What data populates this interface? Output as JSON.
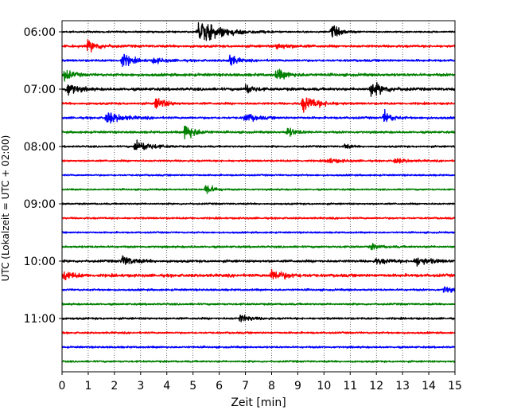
{
  "chart_data": {
    "type": "line",
    "subtype": "helicorder",
    "xlabel": "Zeit  [min]",
    "ylabel": "UTC (Lokalzeit = UTC + 02:00)",
    "xlim": [
      0,
      15
    ],
    "x_ticks": [
      0,
      1,
      2,
      3,
      4,
      5,
      6,
      7,
      8,
      9,
      10,
      11,
      12,
      13,
      14,
      15
    ],
    "x_tick_labels": [
      "0",
      "1",
      "2",
      "3",
      "4",
      "5",
      "6",
      "7",
      "8",
      "9",
      "10",
      "11",
      "12",
      "13",
      "14",
      "15"
    ],
    "grid": "vertical dotted lines at each minute",
    "y_tick_labels": [
      "06:00",
      "07:00",
      "08:00",
      "09:00",
      "10:00",
      "11:00"
    ],
    "y_tick_times_min": [
      0,
      60,
      120,
      180,
      240,
      300
    ],
    "row_interval_min": 15,
    "color_cycle": [
      "#000000",
      "#ff0000",
      "#0000ff",
      "#008000"
    ],
    "rows": [
      {
        "start": "06:00",
        "color": "#000000",
        "noise": 0.9,
        "events": [
          {
            "t": 5.2,
            "amp": 14,
            "dur": 1.3
          },
          {
            "t": 10.3,
            "amp": 7,
            "dur": 0.5
          }
        ]
      },
      {
        "start": "06:15",
        "color": "#ff0000",
        "noise": 1.3,
        "events": [
          {
            "t": 1.0,
            "amp": 6,
            "dur": 0.6
          },
          {
            "t": 8.2,
            "amp": 3,
            "dur": 0.8
          }
        ]
      },
      {
        "start": "06:30",
        "color": "#0000ff",
        "noise": 1.2,
        "events": [
          {
            "t": 2.3,
            "amp": 8,
            "dur": 0.5
          },
          {
            "t": 6.4,
            "amp": 7,
            "dur": 0.4
          },
          {
            "t": 3.5,
            "amp": 3,
            "dur": 0.6
          }
        ]
      },
      {
        "start": "06:45",
        "color": "#008000",
        "noise": 1.5,
        "events": [
          {
            "t": 0.1,
            "amp": 6,
            "dur": 0.4
          },
          {
            "t": 8.2,
            "amp": 6,
            "dur": 0.6
          }
        ]
      },
      {
        "start": "07:00",
        "color": "#000000",
        "noise": 1.5,
        "events": [
          {
            "t": 0.2,
            "amp": 8,
            "dur": 0.5
          },
          {
            "t": 7.0,
            "amp": 6,
            "dur": 0.4
          },
          {
            "t": 11.8,
            "amp": 8,
            "dur": 0.7
          }
        ]
      },
      {
        "start": "07:15",
        "color": "#ff0000",
        "noise": 1.2,
        "events": [
          {
            "t": 3.6,
            "amp": 7,
            "dur": 0.5
          },
          {
            "t": 9.2,
            "amp": 9,
            "dur": 0.8
          }
        ]
      },
      {
        "start": "07:30",
        "color": "#0000ff",
        "noise": 1.2,
        "events": [
          {
            "t": 1.7,
            "amp": 7,
            "dur": 0.8
          },
          {
            "t": 7.0,
            "amp": 5,
            "dur": 0.6
          },
          {
            "t": 12.3,
            "amp": 8,
            "dur": 0.4
          }
        ]
      },
      {
        "start": "07:45",
        "color": "#008000",
        "noise": 1.2,
        "events": [
          {
            "t": 4.7,
            "amp": 11,
            "dur": 0.5
          },
          {
            "t": 8.6,
            "amp": 5,
            "dur": 0.5
          }
        ]
      },
      {
        "start": "08:00",
        "color": "#000000",
        "noise": 1.0,
        "events": [
          {
            "t": 2.8,
            "amp": 7,
            "dur": 0.8
          },
          {
            "t": 10.8,
            "amp": 3,
            "dur": 0.3
          }
        ]
      },
      {
        "start": "08:15",
        "color": "#ff0000",
        "noise": 1.0,
        "events": [
          {
            "t": 10.1,
            "amp": 3,
            "dur": 0.7
          },
          {
            "t": 12.7,
            "amp": 3,
            "dur": 0.6
          }
        ]
      },
      {
        "start": "08:30",
        "color": "#0000ff",
        "noise": 0.9,
        "events": []
      },
      {
        "start": "08:45",
        "color": "#008000",
        "noise": 0.9,
        "events": [
          {
            "t": 5.5,
            "amp": 7,
            "dur": 0.4
          }
        ]
      },
      {
        "start": "09:00",
        "color": "#000000",
        "noise": 0.9,
        "events": []
      },
      {
        "start": "09:15",
        "color": "#ff0000",
        "noise": 1.0,
        "events": []
      },
      {
        "start": "09:30",
        "color": "#0000ff",
        "noise": 0.9,
        "events": []
      },
      {
        "start": "09:45",
        "color": "#008000",
        "noise": 1.1,
        "events": [
          {
            "t": 11.8,
            "amp": 3,
            "dur": 0.5
          }
        ]
      },
      {
        "start": "10:00",
        "color": "#000000",
        "noise": 1.3,
        "events": [
          {
            "t": 2.3,
            "amp": 6,
            "dur": 0.6
          },
          {
            "t": 13.5,
            "amp": 5,
            "dur": 0.8
          },
          {
            "t": 12.0,
            "amp": 3,
            "dur": 0.8
          }
        ]
      },
      {
        "start": "10:15",
        "color": "#ff0000",
        "noise": 1.6,
        "events": [
          {
            "t": 0.1,
            "amp": 5,
            "dur": 0.5
          },
          {
            "t": 8.0,
            "amp": 6,
            "dur": 0.8
          }
        ]
      },
      {
        "start": "10:30",
        "color": "#0000ff",
        "noise": 1.1,
        "events": [
          {
            "t": 14.6,
            "amp": 4,
            "dur": 0.4
          }
        ]
      },
      {
        "start": "10:45",
        "color": "#008000",
        "noise": 1.0,
        "events": []
      },
      {
        "start": "11:00",
        "color": "#000000",
        "noise": 1.1,
        "events": [
          {
            "t": 6.8,
            "amp": 4,
            "dur": 0.6
          }
        ]
      },
      {
        "start": "11:15",
        "color": "#ff0000",
        "noise": 1.0,
        "events": []
      },
      {
        "start": "11:30",
        "color": "#0000ff",
        "noise": 1.0,
        "events": []
      },
      {
        "start": "11:45",
        "color": "#008000",
        "noise": 1.0,
        "events": []
      }
    ]
  }
}
